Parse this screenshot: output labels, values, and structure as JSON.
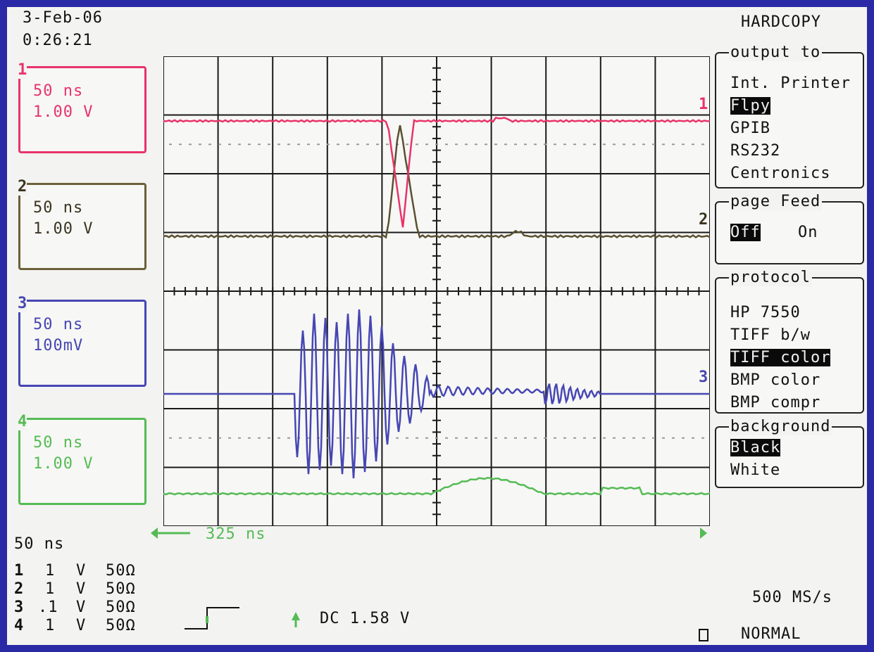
{
  "header": {
    "date": "3-Feb-06",
    "time": "0:26:21"
  },
  "menu_title": "HARDCOPY",
  "channels": [
    {
      "id": "1",
      "timebase": "50 ns",
      "volts": "1.00 V",
      "color": "#e8336a"
    },
    {
      "id": "2",
      "timebase": "50 ns",
      "volts": "1.00 V",
      "color": "#6b6038"
    },
    {
      "id": "3",
      "timebase": "50 ns",
      "volts": "100mV",
      "color": "#4646b4"
    },
    {
      "id": "4",
      "timebase": "50 ns",
      "volts": "1.00 V",
      "color": "#55bb55"
    }
  ],
  "output_to": {
    "title": "output to",
    "items": [
      "Int. Printer",
      "Flpy",
      "GPIB",
      "RS232",
      "Centronics"
    ],
    "selected": "Flpy"
  },
  "page_feed": {
    "title": "page Feed",
    "items": [
      "Off",
      "On"
    ],
    "selected": "Off"
  },
  "protocol": {
    "title": "protocol",
    "items": [
      "HP 7550",
      "TIFF b/w",
      "TIFF color",
      "BMP color",
      "BMP compr"
    ],
    "selected": "TIFF color"
  },
  "background": {
    "title": "background",
    "items": [
      "Black",
      "White"
    ],
    "selected": "Black"
  },
  "trace_labels": [
    "1",
    "2",
    "3"
  ],
  "timebase": "50 ns",
  "delay": "325 ns",
  "channel_table": [
    {
      "ch": "1",
      "scale": "1",
      "unit": "V",
      "imp": "50Ω"
    },
    {
      "ch": "2",
      "scale": "1",
      "unit": "V",
      "imp": "50Ω"
    },
    {
      "ch": "3",
      "scale": ".1",
      "unit": "V",
      "imp": "50Ω"
    },
    {
      "ch": "4",
      "scale": "1",
      "unit": "V",
      "imp": "50Ω"
    }
  ],
  "trigger": {
    "coupling": "DC 1.58 V"
  },
  "sample_rate": "500 MS/s",
  "mode": "NORMAL"
}
